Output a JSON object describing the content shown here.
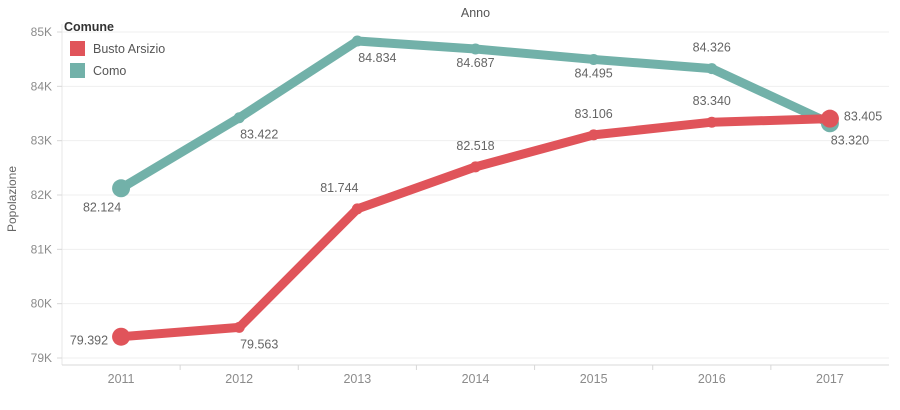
{
  "title": "Anno",
  "y_axis": {
    "label": "Popolazione",
    "tick_labels": [
      "85K",
      "84K",
      "83K",
      "82K",
      "81K",
      "80K",
      "79K"
    ],
    "tick_values": [
      85000,
      84000,
      83000,
      82000,
      81000,
      80000,
      79000
    ]
  },
  "x_axis": {
    "tick_labels": [
      "2011",
      "2012",
      "2013",
      "2014",
      "2015",
      "2016",
      "2017"
    ]
  },
  "legend": {
    "title": "Comune",
    "items": [
      {
        "label": "Busto Arsizio",
        "color": "#e0545a"
      },
      {
        "label": "Como",
        "color": "#72b1a9"
      }
    ]
  },
  "colors": {
    "busto_arsizio": "#e0545a",
    "como": "#72b1a9",
    "grid": "#efefef",
    "axis_line": "#d8d8d8",
    "left_axis_line": "#e7e7e7",
    "tick": "#d8d8d8",
    "tick_text": "#8b8b8b",
    "data_label_text": "#656565"
  },
  "chart_data": {
    "type": "line",
    "x": [
      2011,
      2012,
      2013,
      2014,
      2015,
      2016,
      2017
    ],
    "series": [
      {
        "name": "Busto Arsizio",
        "color": "#e0545a",
        "values": [
          79392,
          79563,
          81744,
          82518,
          83106,
          83340,
          83405
        ],
        "labels": [
          "79.392",
          "79.563",
          "81.744",
          "82.518",
          "83.106",
          "83.340",
          "83.405"
        ],
        "label_positions": [
          "left",
          "below-right",
          "above-left",
          "above",
          "above",
          "above",
          "right"
        ]
      },
      {
        "name": "Como",
        "color": "#72b1a9",
        "values": [
          82124,
          83422,
          84834,
          84687,
          84495,
          84326,
          83320
        ],
        "labels": [
          "82.124",
          "83.422",
          "84.834",
          "84.687",
          "84.495",
          "84.326",
          "83.320"
        ],
        "label_positions": [
          "below-left",
          "below-right",
          "below-right",
          "below",
          "below",
          "above",
          "below-right"
        ]
      }
    ],
    "title": "Anno",
    "xlabel": "Anno",
    "ylabel": "Popolazione",
    "ylim": [
      79000,
      85000
    ],
    "grid": "horizontal",
    "legend_position": "top-left",
    "draw_order": [
      "Como",
      "Busto Arsizio"
    ]
  }
}
